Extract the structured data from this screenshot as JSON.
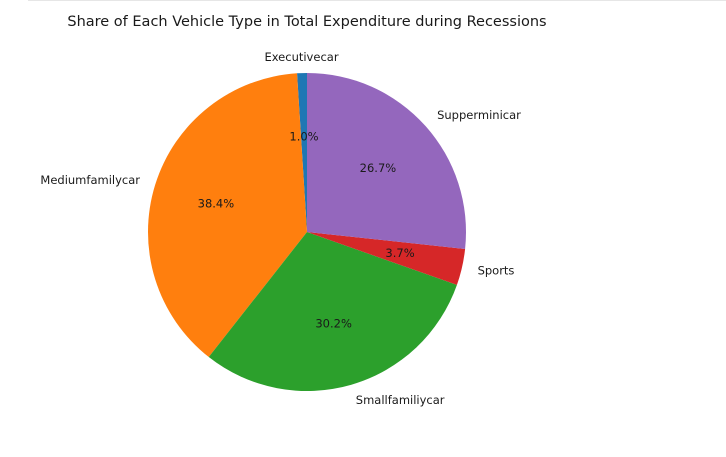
{
  "chart_data": {
    "type": "pie",
    "title": "Share of Each Vehicle Type in Total Expenditure during Recessions",
    "categories": [
      "Executivecar",
      "Mediumfamilycar",
      "Smallfamiliycar",
      "Sports",
      "Supperminicar"
    ],
    "values": [
      1.0,
      38.4,
      30.2,
      3.7,
      26.7
    ],
    "value_labels": [
      "1.0%",
      "38.4%",
      "30.2%",
      "3.7%",
      "26.7%"
    ],
    "colors": [
      "#1f77b4",
      "#ff7f0e",
      "#2ca02c",
      "#d62728",
      "#9467bd"
    ],
    "start_angle_deg": 90,
    "direction": "counterclockwise",
    "legend": "none"
  }
}
